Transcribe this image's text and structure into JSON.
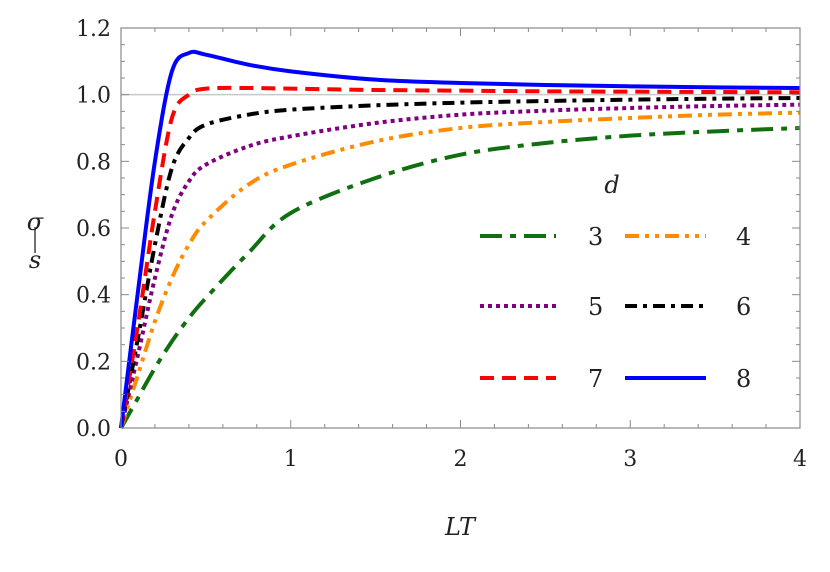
{
  "chart_data": {
    "type": "line",
    "title": "",
    "xlabel": "LT",
    "ylabel_num": "σ",
    "ylabel_den": "s",
    "xlim": [
      0,
      4
    ],
    "ylim": [
      0,
      1.2
    ],
    "xticks": [
      "0",
      "1",
      "2",
      "3",
      "4"
    ],
    "yticks": [
      "0.0",
      "0.2",
      "0.4",
      "0.6",
      "0.8",
      "1.0",
      "1.2"
    ],
    "reference_line_y": 1.0,
    "grid": false,
    "legend_title": "d",
    "legend_placement": "right",
    "x": [
      0,
      0.1,
      0.2,
      0.3,
      0.4,
      0.5,
      0.75,
      1,
      1.5,
      2,
      2.5,
      3,
      3.5,
      4
    ],
    "series": [
      {
        "name": "3",
        "color": "#107010",
        "style": "long-dash-dot",
        "values": [
          0,
          0.09,
          0.18,
          0.26,
          0.33,
          0.39,
          0.525,
          0.645,
          0.75,
          0.82,
          0.855,
          0.877,
          0.89,
          0.9
        ]
      },
      {
        "name": "4",
        "color": "#ff8c00",
        "style": "dash-dot-dot",
        "values": [
          0,
          0.16,
          0.32,
          0.45,
          0.55,
          0.62,
          0.73,
          0.79,
          0.86,
          0.9,
          0.918,
          0.93,
          0.94,
          0.946
        ]
      },
      {
        "name": "5",
        "color": "#800080",
        "style": "dotted",
        "values": [
          0,
          0.22,
          0.45,
          0.64,
          0.74,
          0.79,
          0.845,
          0.875,
          0.915,
          0.94,
          0.952,
          0.96,
          0.966,
          0.97
        ]
      },
      {
        "name": "6",
        "color": "#000000",
        "style": "dash-dot",
        "values": [
          0,
          0.27,
          0.55,
          0.78,
          0.87,
          0.91,
          0.94,
          0.955,
          0.968,
          0.976,
          0.981,
          0.985,
          0.988,
          0.99
        ]
      },
      {
        "name": "7",
        "color": "#ff0000",
        "style": "dashed",
        "values": [
          0,
          0.31,
          0.65,
          0.93,
          1.0,
          1.018,
          1.02,
          1.018,
          1.014,
          1.012,
          1.01,
          1.009,
          1.008,
          1.007
        ]
      },
      {
        "name": "8",
        "color": "#0000ff",
        "style": "solid",
        "values": [
          0,
          0.41,
          0.8,
          1.07,
          1.125,
          1.12,
          1.09,
          1.07,
          1.045,
          1.035,
          1.029,
          1.025,
          1.022,
          1.02
        ]
      }
    ]
  }
}
